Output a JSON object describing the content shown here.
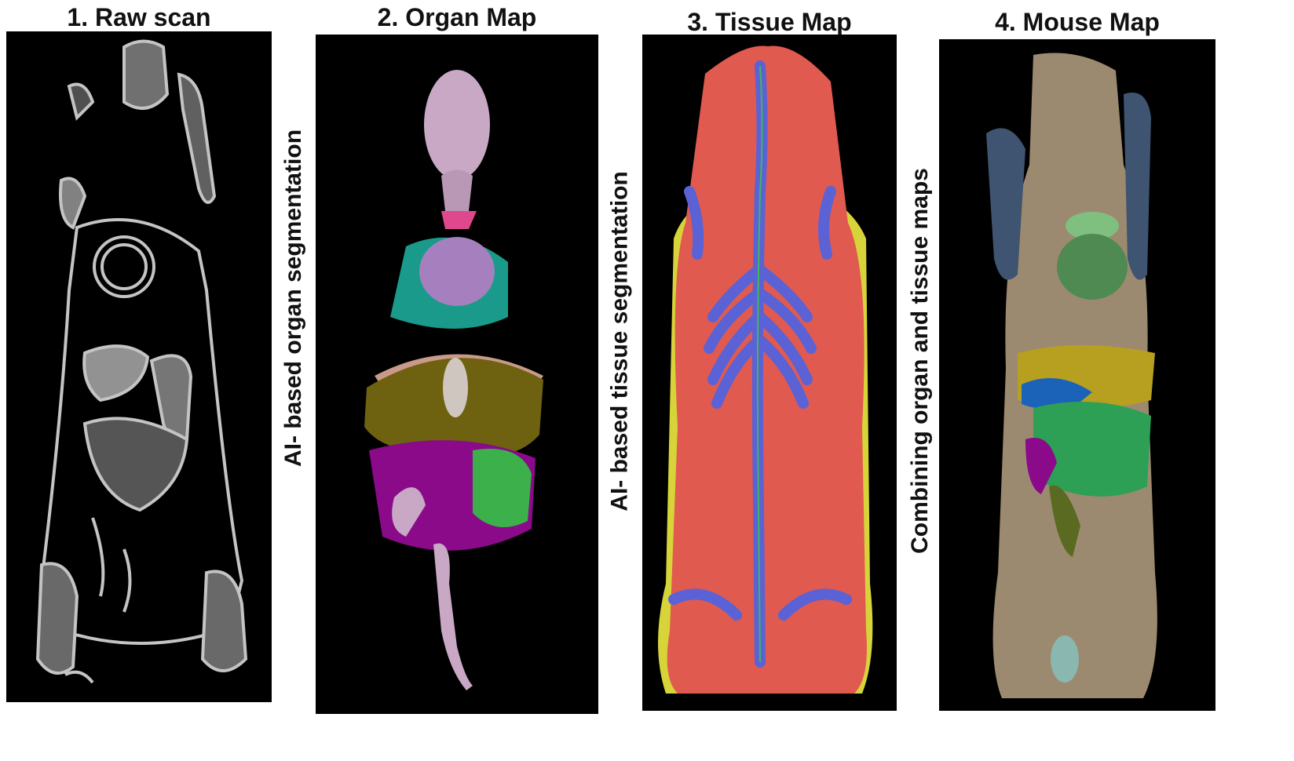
{
  "panels": [
    {
      "title": "1. Raw scan"
    },
    {
      "title": "2. Organ Map"
    },
    {
      "title": "3. Tissue Map"
    },
    {
      "title": "4. Mouse Map"
    }
  ],
  "steps": [
    {
      "label": "AI- based organ segmentation"
    },
    {
      "label": "AI- based tissue segmentation"
    },
    {
      "label": "Combining organ and tissue maps"
    }
  ],
  "colors": {
    "panel_bg": "#000000",
    "raw_scan_tissue": "#d9d9d9",
    "organ_brain": "#c8a8c4",
    "organ_trachea": "#e0488e",
    "organ_heart": "#a67fbf",
    "organ_lungs": "#1a9a8a",
    "organ_liver": "#6e6210",
    "organ_stomach": "#cfc7bf",
    "organ_intestines": "#8a0a8a",
    "organ_colon": "#3cb04a",
    "tissue_soft": "#e05a50",
    "tissue_bone": "#5a62d6",
    "tissue_fat": "#d7d43a",
    "tissue_boundary": "#3ec24a",
    "mouse_skin": "#9c8a70",
    "mouse_liver": "#b7a020",
    "mouse_gut": "#2da055",
    "mouse_spleen": "#1a63b8",
    "mouse_heart": "#7fc080"
  }
}
